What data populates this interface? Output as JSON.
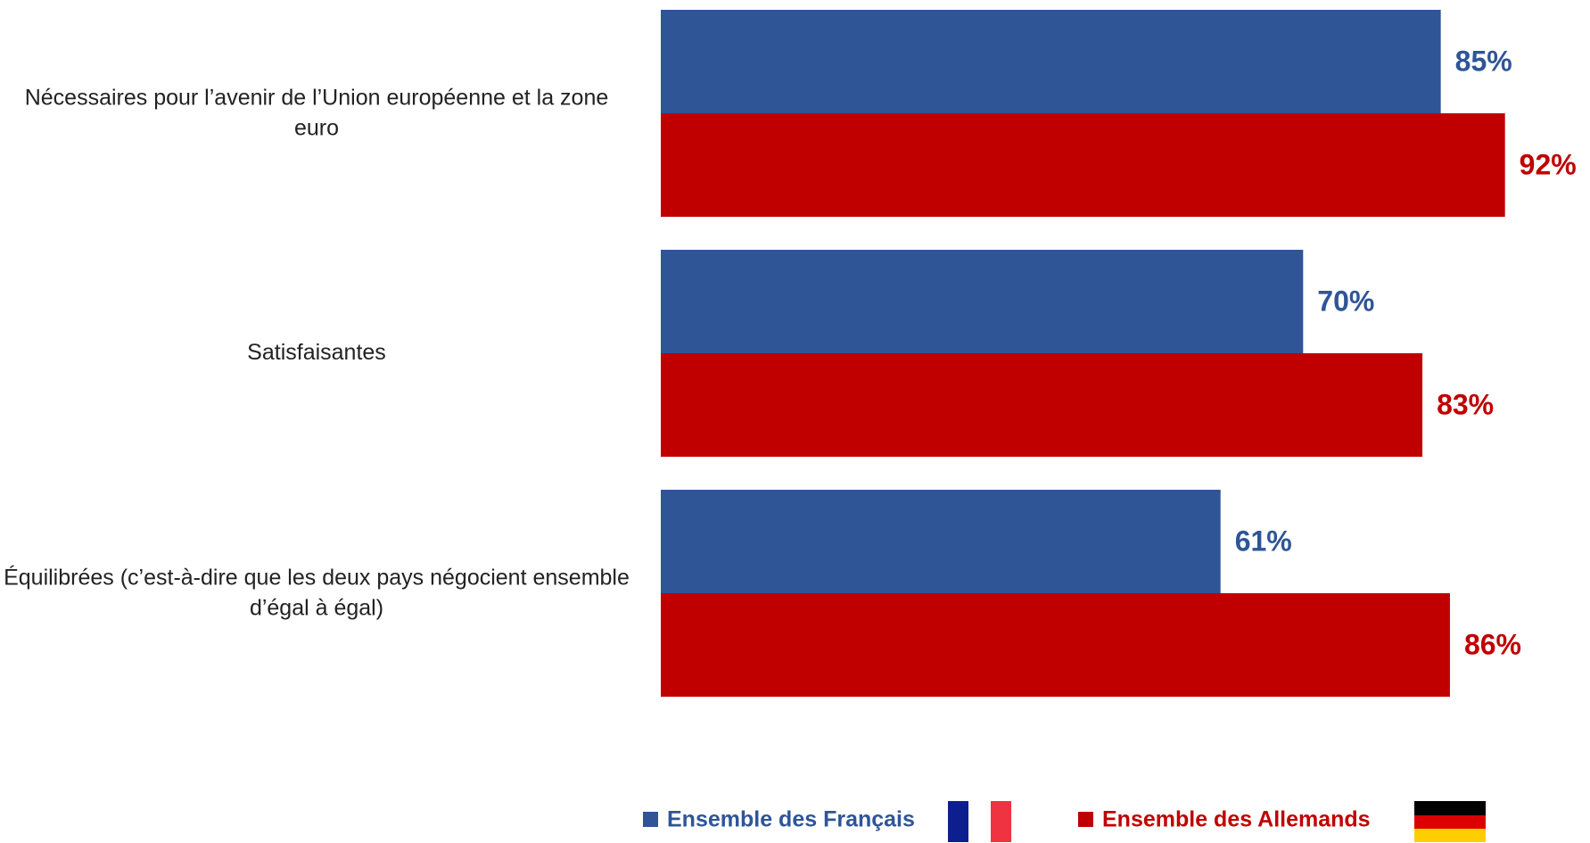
{
  "chart_data": {
    "type": "hbar",
    "categories": [
      "Nécessaires pour l’avenir de l’Union européenne et la zone euro",
      "Satisfaisantes",
      "Équilibrées (c’est-à-dire que les deux pays négocient ensemble d’égal à égal)"
    ],
    "series": [
      {
        "name": "Ensemble des Français",
        "color": "#2f5597",
        "values": [
          85,
          70,
          61
        ],
        "value_labels": [
          "85%",
          "70%",
          "61%"
        ]
      },
      {
        "name": "Ensemble des Allemands",
        "color": "#c00000",
        "values": [
          92,
          83,
          86
        ],
        "value_labels": [
          "92%",
          "83%",
          "86%"
        ]
      }
    ],
    "xlim": [
      0,
      100
    ]
  }
}
